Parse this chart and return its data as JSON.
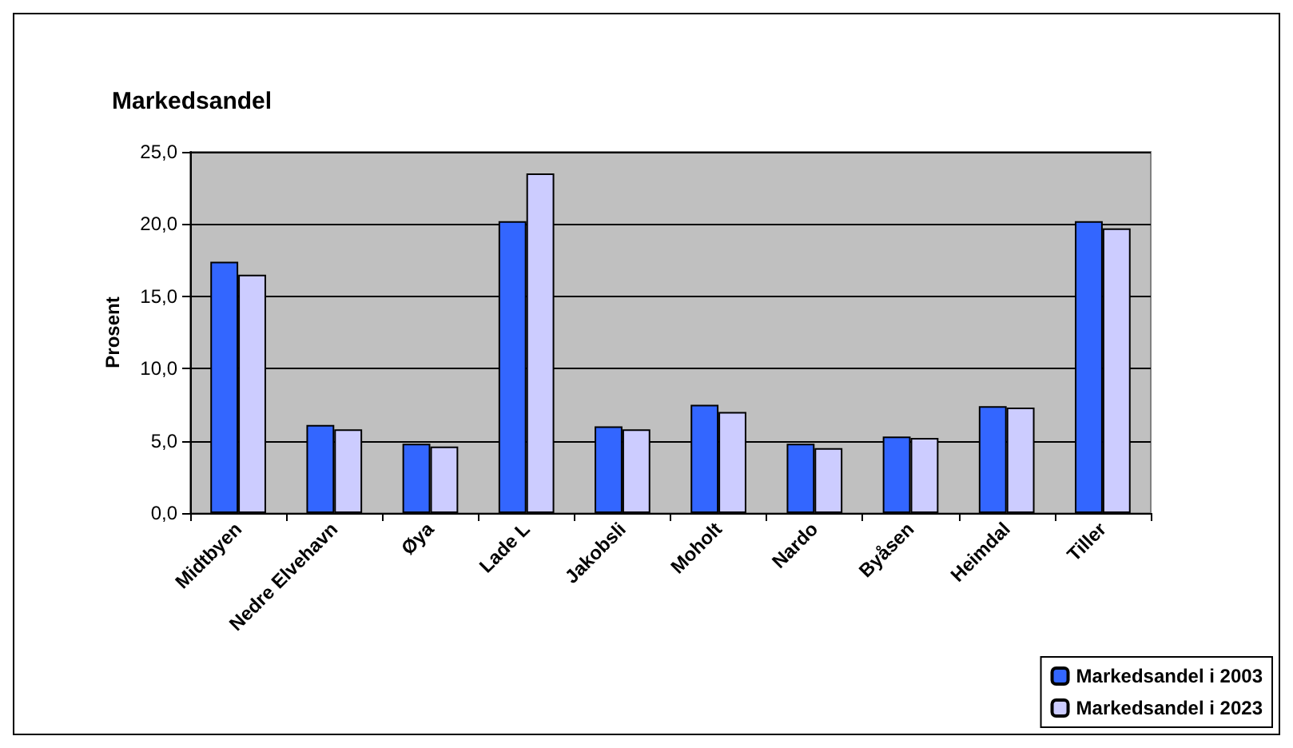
{
  "chart_data": {
    "type": "bar",
    "title": "Markedsandel",
    "ylabel": "Prosent",
    "categories": [
      "Midtbyen",
      "Nedre Elvehavn",
      "Øya",
      "Lade L",
      "Jakobsli",
      "Moholt",
      "Nardo",
      "Byåsen",
      "Heimdal",
      "Tiller"
    ],
    "series": [
      {
        "name": "Markedsandel i 2003",
        "color": "#3366ff",
        "values": [
          17.4,
          6.1,
          4.8,
          20.2,
          6.0,
          7.5,
          4.8,
          5.3,
          7.4,
          20.2
        ]
      },
      {
        "name": "Markedsandel i 2023",
        "color": "#ccccff",
        "values": [
          16.5,
          5.8,
          4.6,
          23.5,
          5.8,
          7.0,
          4.5,
          5.2,
          7.3,
          19.7
        ]
      }
    ],
    "ylim": [
      0,
      25
    ],
    "yticks": [
      {
        "value": 0,
        "label": "0,0"
      },
      {
        "value": 5,
        "label": "5,0"
      },
      {
        "value": 10,
        "label": "10,0"
      },
      {
        "value": 15,
        "label": "15,0"
      },
      {
        "value": 20,
        "label": "20,0"
      },
      {
        "value": 25,
        "label": "25,0"
      }
    ],
    "grid": "y",
    "legend": "bottom right"
  }
}
